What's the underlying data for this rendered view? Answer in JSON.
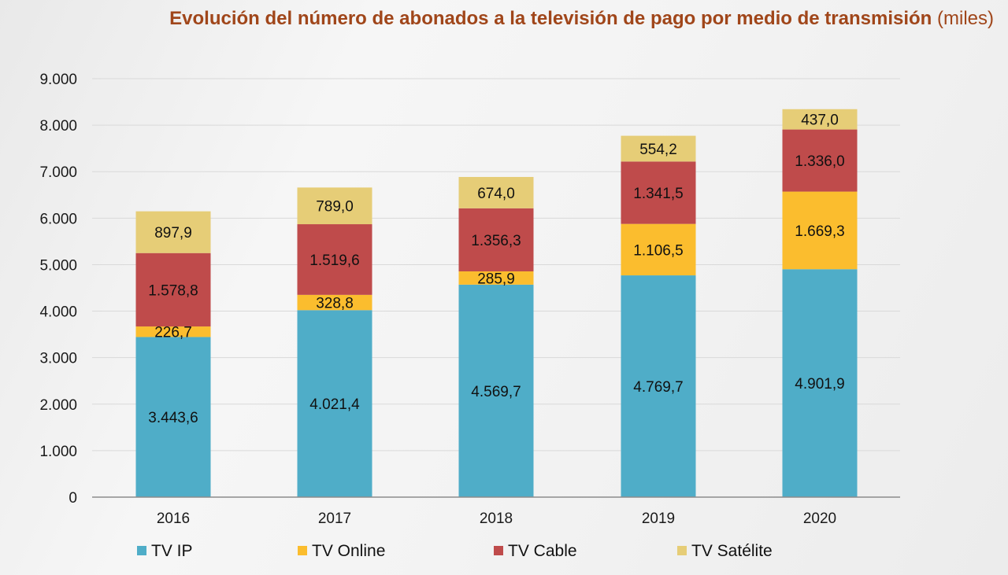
{
  "title": {
    "main": "Evolución del número de abonados a la televisión de pago por medio de transmisión",
    "unit": "(miles)"
  },
  "chart_data": {
    "type": "bar",
    "stacked": true,
    "categories": [
      "2016",
      "2017",
      "2018",
      "2019",
      "2020"
    ],
    "series": [
      {
        "name": "TV IP",
        "color": "#4fadc8",
        "values": [
          3443.6,
          4021.4,
          4569.7,
          4769.7,
          4901.9
        ],
        "labels": [
          "3.443,6",
          "4.021,4",
          "4.569,7",
          "4.769,7",
          "4.901,9"
        ]
      },
      {
        "name": "TV Online",
        "color": "#fbbd2e",
        "values": [
          226.7,
          328.8,
          285.9,
          1106.5,
          1669.3
        ],
        "labels": [
          "226,7",
          "328,8",
          "285,9",
          "1.106,5",
          "1.669,3"
        ]
      },
      {
        "name": "TV Cable",
        "color": "#bf4b4b",
        "values": [
          1578.8,
          1519.6,
          1356.3,
          1341.5,
          1336.0
        ],
        "labels": [
          "1.578,8",
          "1.519,6",
          "1.356,3",
          "1.341,5",
          "1.336,0"
        ]
      },
      {
        "name": "TV Satélite",
        "color": "#e6cd77",
        "values": [
          897.9,
          789.0,
          674.0,
          554.2,
          437.0
        ],
        "labels": [
          "897,9",
          "789,0",
          "674,0",
          "554,2",
          "437,0"
        ]
      }
    ],
    "ylim": [
      0,
      9000
    ],
    "yticks": [
      "0",
      "1.000",
      "2.000",
      "3.000",
      "4.000",
      "5.000",
      "6.000",
      "7.000",
      "8.000",
      "9.000"
    ],
    "grid": true,
    "legend": "bottom"
  }
}
